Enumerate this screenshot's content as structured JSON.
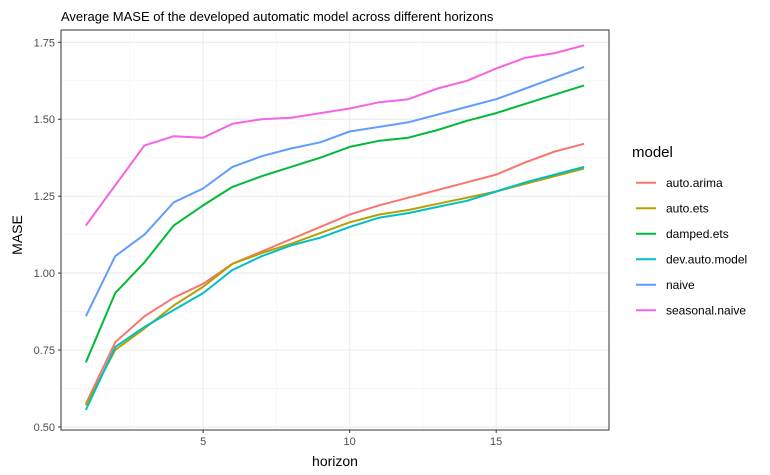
{
  "chart_data": {
    "type": "line",
    "title": "Average MASE of the developed automatic model across different horizons",
    "xlabel": "horizon",
    "ylabel": "MASE",
    "xlim": [
      0.15,
      18.85
    ],
    "ylim": [
      0.49,
      1.79
    ],
    "xticks": [
      5,
      10,
      15
    ],
    "xtick_labels": [
      "5",
      "10",
      "15"
    ],
    "yticks": [
      0.5,
      0.75,
      1.0,
      1.25,
      1.5,
      1.75
    ],
    "ytick_labels": [
      "0.50",
      "0.75",
      "1.00",
      "1.25",
      "1.50",
      "1.75"
    ],
    "grid": true,
    "legend": {
      "title": "model",
      "position": "right"
    },
    "x": [
      1,
      2,
      3,
      4,
      5,
      6,
      7,
      8,
      9,
      10,
      11,
      12,
      13,
      14,
      15,
      16,
      17,
      18
    ],
    "series": [
      {
        "name": "auto.arima",
        "color": "#F8766D",
        "values": [
          0.575,
          0.775,
          0.86,
          0.92,
          0.965,
          1.03,
          1.07,
          1.11,
          1.15,
          1.19,
          1.22,
          1.245,
          1.27,
          1.295,
          1.32,
          1.36,
          1.395,
          1.42
        ]
      },
      {
        "name": "auto.ets",
        "color": "#B79F00",
        "values": [
          0.57,
          0.75,
          0.82,
          0.895,
          0.955,
          1.03,
          1.065,
          1.095,
          1.13,
          1.165,
          1.19,
          1.205,
          1.225,
          1.245,
          1.265,
          1.29,
          1.315,
          1.34
        ]
      },
      {
        "name": "damped.ets",
        "color": "#00BA38",
        "values": [
          0.71,
          0.935,
          1.035,
          1.155,
          1.22,
          1.28,
          1.315,
          1.345,
          1.375,
          1.41,
          1.43,
          1.44,
          1.465,
          1.495,
          1.52,
          1.55,
          1.58,
          1.61
        ]
      },
      {
        "name": "dev.auto.model",
        "color": "#00BFC4",
        "values": [
          0.555,
          0.76,
          0.825,
          0.88,
          0.935,
          1.01,
          1.055,
          1.09,
          1.115,
          1.15,
          1.18,
          1.195,
          1.215,
          1.235,
          1.265,
          1.295,
          1.32,
          1.345
        ]
      },
      {
        "name": "naive",
        "color": "#619CFF",
        "values": [
          0.86,
          1.055,
          1.125,
          1.23,
          1.275,
          1.345,
          1.38,
          1.405,
          1.425,
          1.46,
          1.475,
          1.49,
          1.515,
          1.54,
          1.565,
          1.6,
          1.635,
          1.67
        ]
      },
      {
        "name": "seasonal.naive",
        "color": "#F564E3",
        "values": [
          1.155,
          1.285,
          1.415,
          1.445,
          1.44,
          1.485,
          1.5,
          1.505,
          1.52,
          1.535,
          1.555,
          1.565,
          1.6,
          1.625,
          1.665,
          1.7,
          1.715,
          1.74
        ]
      }
    ]
  }
}
